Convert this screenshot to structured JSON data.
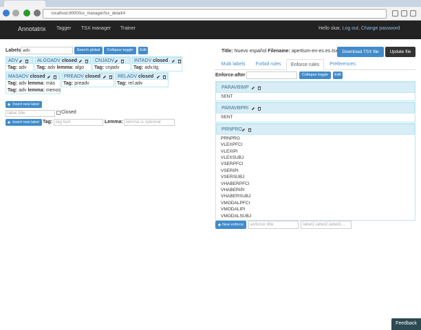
{
  "browser": {
    "url": "localhost:8000/tsx_manager/tsx_detail/4"
  },
  "navbar": {
    "brand": "Annotatrix",
    "links": [
      "Tagger",
      "TSX manager",
      "Trainer"
    ],
    "greeting": "Hello skar,",
    "logout": "Log out,",
    "change_password": "Change password"
  },
  "labels_panel": {
    "caption": "Labels",
    "search_value": "adv",
    "buttons": [
      "Search global",
      "Collapse toggle",
      "Edit"
    ],
    "tag_caption": "Tag:",
    "lemma_caption": "lemma:",
    "labels": [
      {
        "name": "ADV",
        "tags": [
          {
            "tag": "adv"
          }
        ]
      },
      {
        "name": "ALGOADV",
        "state": "closed",
        "tags": [
          {
            "tag": "adv",
            "lemma": "algo"
          }
        ]
      },
      {
        "name": "CNJADV",
        "tags": [
          {
            "tag": "cnjadv"
          }
        ]
      },
      {
        "name": "INTADV",
        "state": "closed",
        "tags": [
          {
            "tag": "adv.itg"
          }
        ]
      },
      {
        "name": "MASADV",
        "state": "closed",
        "tags": [
          {
            "tag": "adv",
            "lemma": "más"
          },
          {
            "tag": "adv",
            "lemma": "menos"
          }
        ]
      },
      {
        "name": "PREADV",
        "state": "closed",
        "tags": [
          {
            "tag": "preadv"
          }
        ]
      },
      {
        "name": "RELADV",
        "state": "closed",
        "tags": [
          {
            "tag": "rel.adv"
          }
        ]
      }
    ],
    "insert_buttons": [
      "Insert new label",
      "Insert new label"
    ],
    "title_placeholder": "label title",
    "closed_caption": "Closed",
    "tag_form_caption": "Tag:",
    "tag_placeholder": "tag text",
    "lemma_form_caption": "Lemma:",
    "lemma_placeholder": "lemma is optional"
  },
  "file": {
    "title_caption": "Title:",
    "title": "Nuevo español",
    "filename_caption": "Filename:",
    "filename": "apertium-en-es.es.tsx",
    "buttons": [
      "Download TSX file",
      "Update file"
    ]
  },
  "tabs": {
    "items": [
      "Multi labels",
      "Forbid rules",
      "Enforce rules",
      "Preferences"
    ],
    "active": 2
  },
  "enforce": {
    "caption": "Enforce-after",
    "buttons": [
      "Collapse toggle",
      "Edit"
    ],
    "rules": [
      {
        "name": "PARAVBIMP",
        "labels": [
          "SENT"
        ]
      },
      {
        "name": "PARAVBPRI",
        "labels": [
          "SENT"
        ]
      },
      {
        "name": "PRNPRO",
        "labels": [
          "PRNPRO",
          "VLEXPFCI",
          "VLEXIPI",
          "VLEXSUBJ",
          "VSERPFCI",
          "VSERIPI",
          "VSERSUBJ",
          "VHABERPFCI",
          "VHABERIPI",
          "VHABERSUBJ",
          "VMODALPFCI",
          "VMODALIPI",
          "VMODALSUBJ"
        ]
      }
    ],
    "new_button": "New enforce",
    "title_placeholder": "enforce title",
    "labels_placeholder": "label1,label2,label3,..."
  },
  "feedback": "Feedback"
}
